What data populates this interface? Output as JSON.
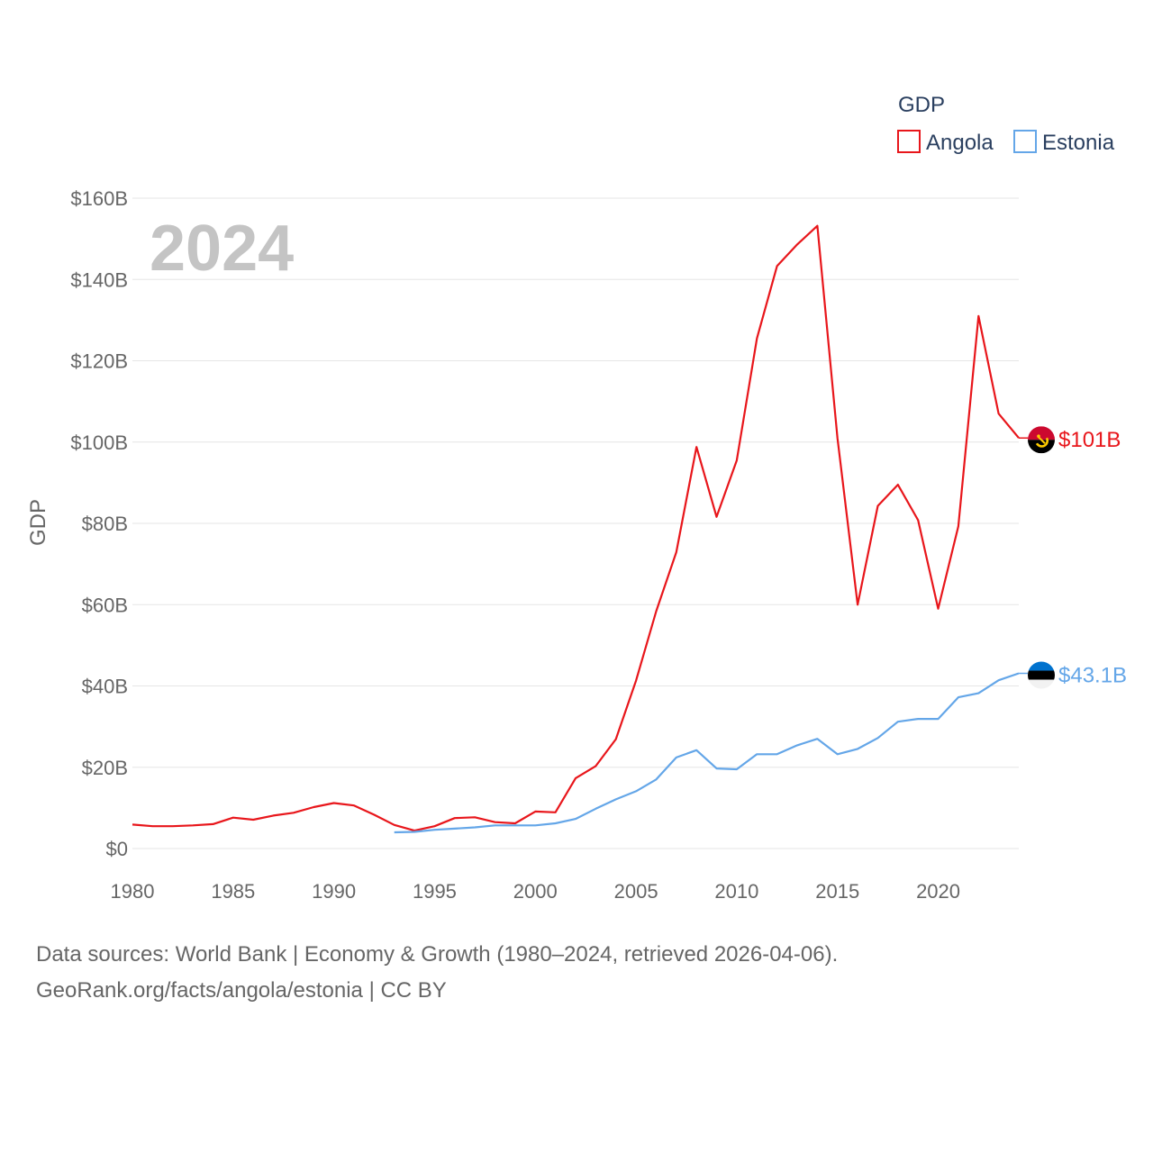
{
  "chart_data": {
    "type": "line",
    "legend_title": "GDP",
    "ylabel": "GDP",
    "watermark_year": "2024",
    "xlim": [
      1980,
      2024
    ],
    "ylim": [
      0,
      160
    ],
    "y_ticks": [
      0,
      20,
      40,
      60,
      80,
      100,
      120,
      140,
      160
    ],
    "y_tick_labels": [
      "$0",
      "$20B",
      "$40B",
      "$60B",
      "$80B",
      "$100B",
      "$120B",
      "$140B",
      "$160B"
    ],
    "x_ticks": [
      1980,
      1985,
      1990,
      1995,
      2000,
      2005,
      2010,
      2015,
      2020
    ],
    "x_tick_labels": [
      "1980",
      "1985",
      "1990",
      "1995",
      "2000",
      "2005",
      "2010",
      "2015",
      "2020"
    ],
    "series": [
      {
        "name": "Angola",
        "color": "#e8161b",
        "end_label": "$101B",
        "flag": "angola-flag",
        "x": [
          1980,
          1981,
          1982,
          1983,
          1984,
          1985,
          1986,
          1987,
          1988,
          1989,
          1990,
          1991,
          1992,
          1993,
          1994,
          1995,
          1996,
          1997,
          1998,
          1999,
          2000,
          2001,
          2002,
          2003,
          2004,
          2005,
          2006,
          2007,
          2008,
          2009,
          2010,
          2011,
          2012,
          2013,
          2014,
          2015,
          2016,
          2017,
          2018,
          2019,
          2020,
          2021,
          2022,
          2023,
          2024
        ],
        "values": [
          5.9,
          5.5,
          5.5,
          5.7,
          6.0,
          7.6,
          7.1,
          8.1,
          8.8,
          10.2,
          11.2,
          10.6,
          8.3,
          5.8,
          4.4,
          5.5,
          7.5,
          7.7,
          6.5,
          6.2,
          9.1,
          8.9,
          17.3,
          20.3,
          26.9,
          41.3,
          58.4,
          72.9,
          98.8,
          81.6,
          95.5,
          125.5,
          143.3,
          148.6,
          153.2,
          101.0,
          60.0,
          84.3,
          89.5,
          80.8,
          59.0,
          79.3,
          131.0,
          107.0,
          101.0
        ]
      },
      {
        "name": "Estonia",
        "color": "#64a6e8",
        "end_label": "$43.1B",
        "flag": "estonia-flag",
        "x": [
          1993,
          1994,
          1995,
          1996,
          1997,
          1998,
          1999,
          2000,
          2001,
          2002,
          2003,
          2004,
          2005,
          2006,
          2007,
          2008,
          2009,
          2010,
          2011,
          2012,
          2013,
          2014,
          2015,
          2016,
          2017,
          2018,
          2019,
          2020,
          2021,
          2022,
          2023,
          2024
        ],
        "values": [
          4.0,
          4.1,
          4.6,
          4.9,
          5.2,
          5.7,
          5.7,
          5.7,
          6.2,
          7.3,
          9.8,
          12.1,
          14.1,
          17.0,
          22.4,
          24.2,
          19.7,
          19.5,
          23.2,
          23.2,
          25.4,
          27.0,
          23.2,
          24.5,
          27.2,
          31.2,
          31.9,
          31.9,
          37.2,
          38.2,
          41.4,
          43.1
        ]
      }
    ]
  },
  "footer": {
    "line1": "Data sources: World Bank | Economy & Growth (1980–2024, retrieved 2026-04-06).",
    "line2": "GeoRank.org/facts/angola/estonia | CC BY"
  }
}
